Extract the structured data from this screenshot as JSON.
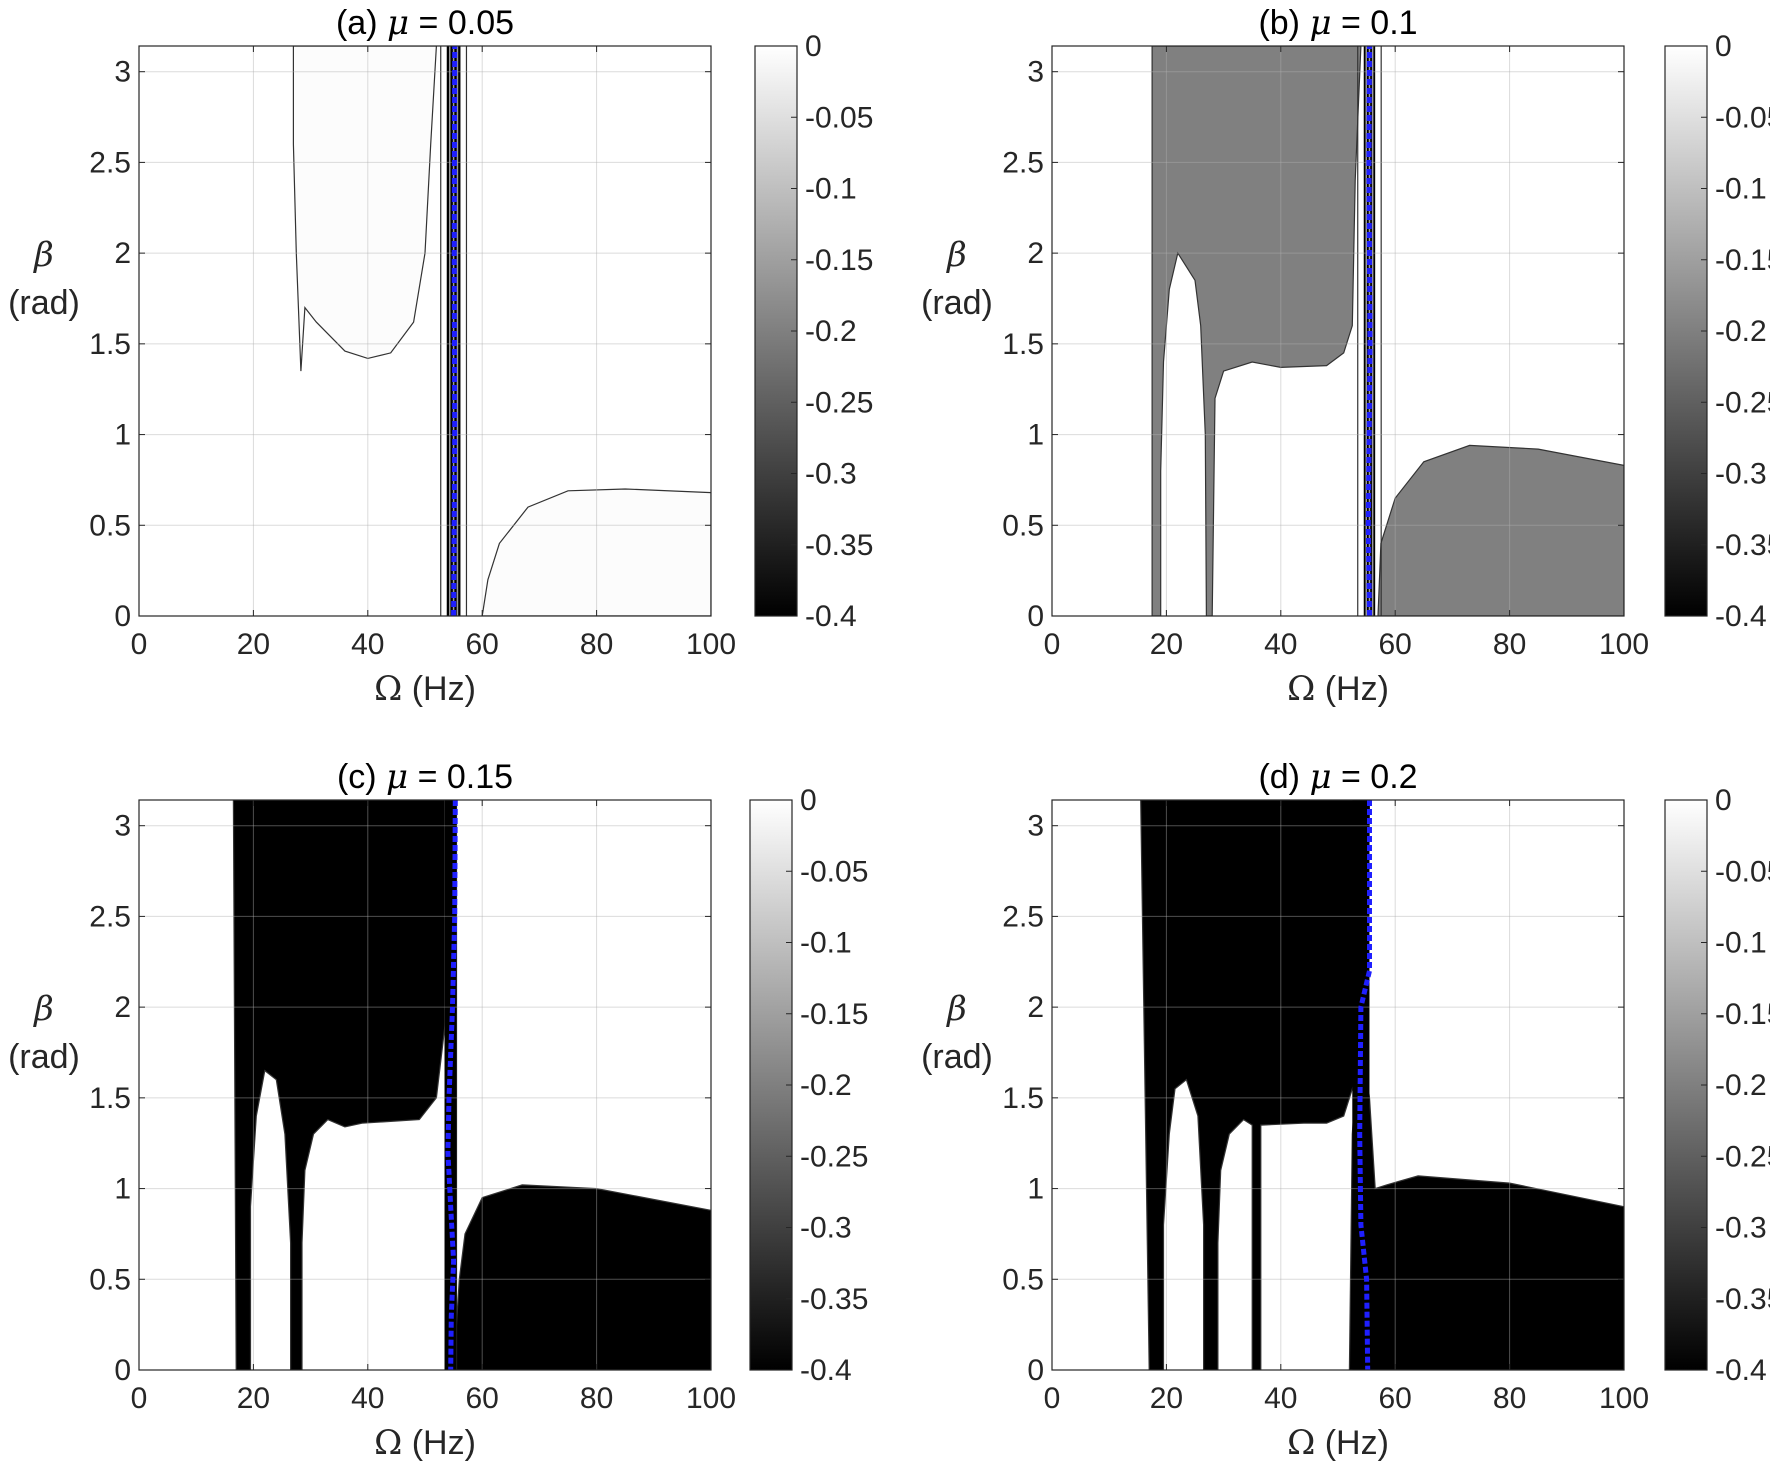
{
  "chart_data": [
    {
      "type": "heatmap",
      "panel": "a",
      "title_prefix": "(a) ",
      "title_symbol": "μ",
      "title_suffix": " = 0.05",
      "mu": 0.05,
      "xlabel_symbol": "Ω",
      "xlabel_text": " (Hz)",
      "ylabel_symbol": "β",
      "ylabel_text": "(rad)",
      "xlim": [
        0,
        100
      ],
      "ylim": [
        0,
        3.1416
      ],
      "xticks": [
        0,
        20,
        40,
        60,
        80,
        100
      ],
      "xtick_labels": [
        "0",
        "20",
        "40",
        "60",
        "80",
        "100"
      ],
      "yticks": [
        0,
        0.5,
        1,
        1.5,
        2,
        2.5,
        3
      ],
      "ytick_labels": [
        "0",
        "0.5",
        "1",
        "1.5",
        "2",
        "2.5",
        "3"
      ],
      "colorbar": {
        "range": [
          -0.4,
          0
        ],
        "ticks": [
          0,
          -0.05,
          -0.1,
          -0.15,
          -0.2,
          -0.25,
          -0.3,
          -0.35,
          -0.4
        ],
        "tick_labels": [
          "0",
          "-0.05",
          "-0.1",
          "-0.15",
          "-0.2",
          "-0.25",
          "-0.3",
          "-0.35",
          "-0.4"
        ]
      },
      "grid": true,
      "region_value": -0.005,
      "regions": [
        {
          "value": -0.005,
          "boundary": [
            [
              27,
              3.1416
            ],
            [
              27,
              2.6
            ],
            [
              27.5,
              2.0
            ],
            [
              28.3,
              1.35
            ],
            [
              29,
              1.7
            ],
            [
              31,
              1.62
            ],
            [
              36,
              1.46
            ],
            [
              40,
              1.42
            ],
            [
              44,
              1.45
            ],
            [
              48,
              1.62
            ],
            [
              50,
              2.0
            ],
            [
              51,
              2.6
            ],
            [
              52,
              3.1416
            ]
          ]
        },
        {
          "value": -0.005,
          "boundary": [
            [
              60,
              0
            ],
            [
              61,
              0.2
            ],
            [
              63,
              0.4
            ],
            [
              68,
              0.6
            ],
            [
              75,
              0.69
            ],
            [
              85,
              0.7
            ],
            [
              100,
              0.68
            ],
            [
              100,
              0
            ],
            [
              60,
              0
            ]
          ]
        }
      ],
      "dark_band_omega": [
        53.8,
        56.2
      ],
      "stability_line": {
        "color": "#1f1fff",
        "points": [
          [
            55,
            0
          ],
          [
            55.2,
            1
          ],
          [
            55.1,
            2
          ],
          [
            55.2,
            3.1416
          ]
        ]
      }
    },
    {
      "type": "heatmap",
      "panel": "b",
      "title_prefix": "(b) ",
      "title_symbol": "μ",
      "title_suffix": " = 0.1",
      "mu": 0.1,
      "xlabel_symbol": "Ω",
      "xlabel_text": " (Hz)",
      "ylabel_symbol": "β",
      "ylabel_text": "(rad)",
      "xlim": [
        0,
        100
      ],
      "ylim": [
        0,
        3.1416
      ],
      "xticks": [
        0,
        20,
        40,
        60,
        80,
        100
      ],
      "xtick_labels": [
        "0",
        "20",
        "40",
        "60",
        "80",
        "100"
      ],
      "yticks": [
        0,
        0.5,
        1,
        1.5,
        2,
        2.5,
        3
      ],
      "ytick_labels": [
        "0",
        "0.5",
        "1",
        "1.5",
        "2",
        "2.5",
        "3"
      ],
      "colorbar": {
        "range": [
          -0.4,
          0
        ],
        "ticks": [
          0,
          -0.05,
          -0.1,
          -0.15,
          -0.2,
          -0.25,
          -0.3,
          -0.35,
          -0.4
        ],
        "tick_labels": [
          "0",
          "-0.05",
          "-0.1",
          "-0.15",
          "-0.2",
          "-0.25",
          "-0.3",
          "-0.35",
          "-0.4"
        ]
      },
      "grid": true,
      "region_value": -0.2,
      "regions": [
        {
          "value": -0.2,
          "boundary": [
            [
              17.5,
              0
            ],
            [
              17.5,
              3.1416
            ],
            [
              54,
              3.1416
            ],
            [
              53,
              2.4
            ],
            [
              52.5,
              1.6
            ],
            [
              51,
              1.45
            ],
            [
              48,
              1.38
            ],
            [
              40,
              1.37
            ],
            [
              35,
              1.4
            ],
            [
              30,
              1.35
            ],
            [
              28.5,
              1.2
            ],
            [
              28,
              0
            ],
            [
              27,
              0
            ],
            [
              26.8,
              1.0
            ],
            [
              26,
              1.6
            ],
            [
              25,
              1.85
            ],
            [
              22,
              2.0
            ],
            [
              20.5,
              1.8
            ],
            [
              19.5,
              1.4
            ],
            [
              19,
              0.8
            ],
            [
              19,
              0
            ],
            [
              17.5,
              0
            ]
          ]
        },
        {
          "value": -0.2,
          "boundary": [
            [
              57,
              0
            ],
            [
              57.5,
              0.4
            ],
            [
              60,
              0.65
            ],
            [
              65,
              0.85
            ],
            [
              73,
              0.94
            ],
            [
              85,
              0.92
            ],
            [
              100,
              0.83
            ],
            [
              100,
              0
            ],
            [
              57,
              0
            ]
          ]
        }
      ],
      "dark_band_omega": [
        54.5,
        56.5
      ],
      "stability_line": {
        "color": "#1f1fff",
        "points": [
          [
            55.5,
            0
          ],
          [
            55.3,
            0.5
          ],
          [
            55.6,
            1.5
          ],
          [
            55.4,
            2.5
          ],
          [
            55.5,
            3.1416
          ]
        ]
      }
    },
    {
      "type": "heatmap",
      "panel": "c",
      "title_prefix": "(c) ",
      "title_symbol": "μ",
      "title_suffix": " = 0.15",
      "mu": 0.15,
      "xlabel_symbol": "Ω",
      "xlabel_text": " (Hz)",
      "ylabel_symbol": "β",
      "ylabel_text": "(rad)",
      "xlim": [
        0,
        100
      ],
      "ylim": [
        0,
        3.1416
      ],
      "xticks": [
        0,
        20,
        40,
        60,
        80,
        100
      ],
      "xtick_labels": [
        "0",
        "20",
        "40",
        "60",
        "80",
        "100"
      ],
      "yticks": [
        0,
        0.5,
        1,
        1.5,
        2,
        2.5,
        3
      ],
      "ytick_labels": [
        "0",
        "0.5",
        "1",
        "1.5",
        "2",
        "2.5",
        "3"
      ],
      "colorbar": {
        "range": [
          -0.4,
          0
        ],
        "ticks": [
          0,
          -0.05,
          -0.1,
          -0.15,
          -0.2,
          -0.25,
          -0.3,
          -0.35,
          -0.4
        ],
        "tick_labels": [
          "0",
          "-0.05",
          "-0.1",
          "-0.15",
          "-0.2",
          "-0.25",
          "-0.3",
          "-0.35",
          "-0.4"
        ]
      },
      "grid": true,
      "region_value": -0.4,
      "regions": [
        {
          "value": -0.4,
          "boundary": [
            [
              17,
              0
            ],
            [
              16.5,
              3.1416
            ],
            [
              55,
              3.1416
            ],
            [
              54,
              2.5
            ],
            [
              53.5,
              1.9
            ],
            [
              52,
              1.5
            ],
            [
              49,
              1.38
            ],
            [
              44,
              1.37
            ],
            [
              39,
              1.36
            ],
            [
              36,
              1.34
            ],
            [
              33,
              1.38
            ],
            [
              30.5,
              1.3
            ],
            [
              29,
              1.1
            ],
            [
              28.5,
              0.7
            ],
            [
              28.5,
              0
            ],
            [
              26.5,
              0
            ],
            [
              26.5,
              0.7
            ],
            [
              25.5,
              1.3
            ],
            [
              24,
              1.6
            ],
            [
              22,
              1.65
            ],
            [
              20.5,
              1.4
            ],
            [
              19.5,
              0.9
            ],
            [
              19.5,
              0
            ],
            [
              17,
              0
            ]
          ]
        },
        {
          "value": -0.4,
          "boundary": [
            [
              55,
              0
            ],
            [
              56,
              0.5
            ],
            [
              57,
              0.75
            ],
            [
              60,
              0.95
            ],
            [
              67,
              1.02
            ],
            [
              80,
              1.0
            ],
            [
              100,
              0.88
            ],
            [
              100,
              0
            ],
            [
              55,
              0
            ]
          ]
        },
        {
          "value": -0.4,
          "boundary": [
            [
              53.5,
              0
            ],
            [
              53.5,
              3.1416
            ],
            [
              55.5,
              3.1416
            ],
            [
              55.5,
              0
            ],
            [
              53.5,
              0
            ]
          ]
        }
      ],
      "dark_band_omega": [
        53.5,
        55.5
      ],
      "stability_line": {
        "color": "#1f1fff",
        "points": [
          [
            55.3,
            3.1416
          ],
          [
            55.2,
            2.5
          ],
          [
            54.8,
            2.0
          ],
          [
            54.2,
            1.5
          ],
          [
            54.0,
            1.2
          ],
          [
            54.5,
            0.9
          ],
          [
            55.0,
            0.6
          ],
          [
            54.6,
            0.3
          ],
          [
            54.5,
            0
          ]
        ]
      }
    },
    {
      "type": "heatmap",
      "panel": "d",
      "title_prefix": "(d) ",
      "title_symbol": "μ",
      "title_suffix": " = 0.2",
      "mu": 0.2,
      "xlabel_symbol": "Ω",
      "xlabel_text": " (Hz)",
      "ylabel_symbol": "β",
      "ylabel_text": "(rad)",
      "xlim": [
        0,
        100
      ],
      "ylim": [
        0,
        3.1416
      ],
      "xticks": [
        0,
        20,
        40,
        60,
        80,
        100
      ],
      "xtick_labels": [
        "0",
        "20",
        "40",
        "60",
        "80",
        "100"
      ],
      "yticks": [
        0,
        0.5,
        1,
        1.5,
        2,
        2.5,
        3
      ],
      "ytick_labels": [
        "0",
        "0.5",
        "1",
        "1.5",
        "2",
        "2.5",
        "3"
      ],
      "colorbar": {
        "range": [
          -0.4,
          0
        ],
        "ticks": [
          0,
          -0.05,
          -0.1,
          -0.15,
          -0.2,
          -0.25,
          -0.3,
          -0.35,
          -0.4
        ],
        "tick_labels": [
          "0",
          "-0.05",
          "-0.1",
          "-0.15",
          "-0.2",
          "-0.25",
          "-0.3",
          "-0.35",
          "-0.4"
        ]
      },
      "grid": true,
      "region_value": -0.4,
      "regions": [
        {
          "value": -0.4,
          "boundary": [
            [
              17,
              0
            ],
            [
              15.5,
              3.1416
            ],
            [
              55.5,
              3.1416
            ],
            [
              55.2,
              2.3
            ],
            [
              54.5,
              1.9
            ],
            [
              53,
              1.6
            ],
            [
              51,
              1.4
            ],
            [
              48,
              1.36
            ],
            [
              44,
              1.36
            ],
            [
              36.5,
              1.35
            ],
            [
              36.5,
              0
            ],
            [
              35,
              0
            ],
            [
              35,
              1.35
            ],
            [
              33.5,
              1.38
            ],
            [
              31,
              1.3
            ],
            [
              29.5,
              1.1
            ],
            [
              29,
              0.7
            ],
            [
              29,
              0
            ],
            [
              26.5,
              0
            ],
            [
              26.5,
              0.8
            ],
            [
              25.5,
              1.4
            ],
            [
              23.5,
              1.6
            ],
            [
              21.5,
              1.55
            ],
            [
              20.5,
              1.3
            ],
            [
              19.5,
              0.8
            ],
            [
              19.5,
              0
            ],
            [
              17,
              0
            ]
          ]
        },
        {
          "value": -0.4,
          "boundary": [
            [
              52,
              0
            ],
            [
              52.5,
              1.3
            ],
            [
              53.8,
              1.9
            ],
            [
              55.5,
              1.5
            ],
            [
              56.5,
              1.0
            ],
            [
              58.5,
              1.02
            ],
            [
              64,
              1.07
            ],
            [
              80,
              1.03
            ],
            [
              100,
              0.9
            ],
            [
              100,
              0
            ],
            [
              52,
              0
            ]
          ]
        }
      ],
      "dark_band_omega": [
        52.5,
        55.5
      ],
      "stability_line": {
        "color": "#1f1fff",
        "points": [
          [
            55.5,
            3.1416
          ],
          [
            55.5,
            2.2
          ],
          [
            54.0,
            2.0
          ],
          [
            53.8,
            1.3
          ],
          [
            54.0,
            0.8
          ],
          [
            55.0,
            0.5
          ],
          [
            55.2,
            0
          ]
        ]
      }
    }
  ]
}
